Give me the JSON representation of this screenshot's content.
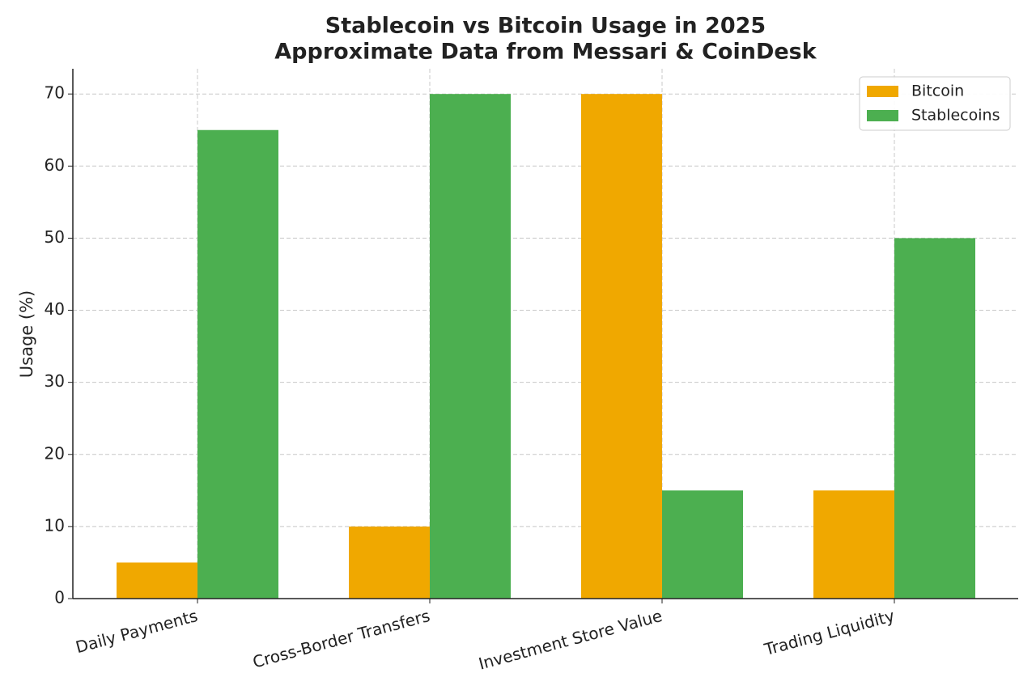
{
  "chart_data": {
    "type": "bar",
    "title": "Stablecoin vs Bitcoin Usage in 2025",
    "subtitle": "Approximate Data from Messari & CoinDesk",
    "ylabel": "Usage (%)",
    "categories": [
      "Daily Payments",
      "Cross-Border Transfers",
      "Investment Store Value",
      "Trading Liquidity"
    ],
    "series": [
      {
        "name": "Bitcoin",
        "color": "#f0a800",
        "values": [
          5,
          10,
          70,
          15
        ]
      },
      {
        "name": "Stablecoins",
        "color": "#4caf50",
        "values": [
          65,
          70,
          15,
          50
        ]
      }
    ],
    "ylim": [
      0,
      73.5
    ],
    "yticks": [
      0,
      10,
      20,
      30,
      40,
      50,
      60,
      70
    ],
    "grid": true,
    "legend": "upper right"
  }
}
